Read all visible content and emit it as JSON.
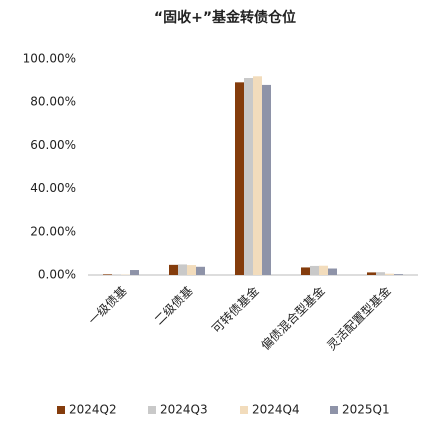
{
  "chart_data": {
    "type": "bar",
    "title": "“固收+”基金转债仓位",
    "categories": [
      "一级债基",
      "二级债基",
      "可转债基金",
      "偏债混合型基金",
      "灵活配置型基金"
    ],
    "series": [
      {
        "name": "2024Q2",
        "color": "#843c0c",
        "values": [
          0.3,
          4.7,
          89.2,
          3.5,
          1.2
        ]
      },
      {
        "name": "2024Q3",
        "color": "#c9c9c9",
        "values": [
          0.1,
          4.9,
          91.2,
          4.2,
          1.3
        ]
      },
      {
        "name": "2024Q4",
        "color": "#f2dcbc",
        "values": [
          0.2,
          4.6,
          92.0,
          4.3,
          0.6
        ]
      },
      {
        "name": "2025Q1",
        "color": "#8e93a8",
        "values": [
          2.3,
          3.8,
          88.0,
          3.0,
          0.4
        ]
      }
    ],
    "ylim": [
      0,
      100
    ],
    "yticks": [
      {
        "value": 0,
        "label": "0.00%"
      },
      {
        "value": 20,
        "label": "20.00%"
      },
      {
        "value": 40,
        "label": "40.00%"
      },
      {
        "value": 60,
        "label": "60.00%"
      },
      {
        "value": 80,
        "label": "80.00%"
      },
      {
        "value": 100,
        "label": "100.00%"
      }
    ],
    "grid": false,
    "legend": "bottom"
  }
}
